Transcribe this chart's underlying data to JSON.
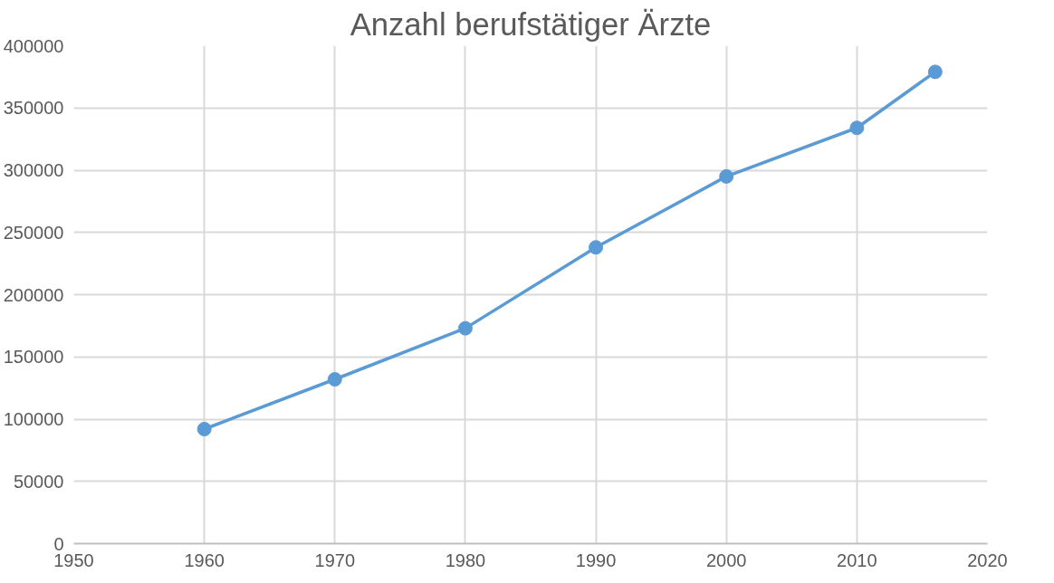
{
  "chart_data": {
    "type": "line",
    "title": "Anzahl berufstätiger Ärzte",
    "x": [
      1960,
      1970,
      1980,
      1990,
      2000,
      2010,
      2016
    ],
    "series": [
      {
        "color": "#5b9bd5",
        "values": [
          92000,
          132000,
          173000,
          238000,
          295000,
          334000,
          379000
        ]
      }
    ],
    "xlim": [
      1950,
      2020
    ],
    "xticks": [
      1950,
      1960,
      1970,
      1980,
      1990,
      2000,
      2010,
      2020
    ],
    "ylim": [
      0,
      400000
    ],
    "yticks": [
      0,
      50000,
      100000,
      150000,
      200000,
      250000,
      300000,
      350000,
      400000
    ],
    "grid": true,
    "marker": "circle",
    "line_style": "solid"
  }
}
